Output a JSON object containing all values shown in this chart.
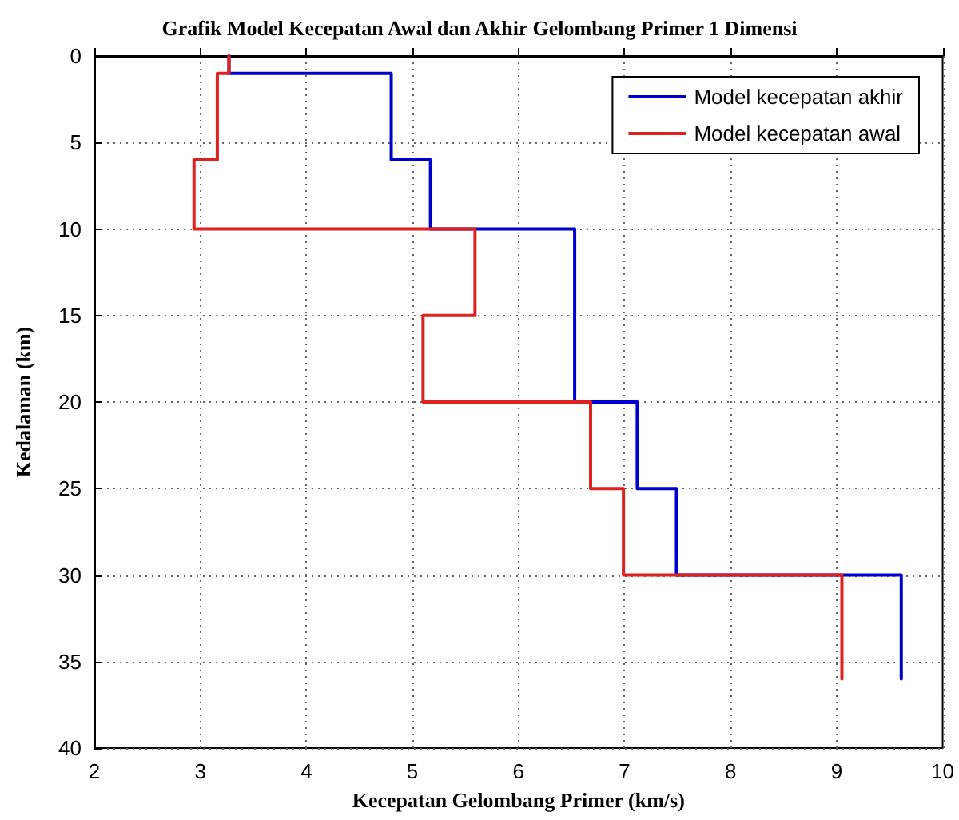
{
  "chart_data": {
    "type": "line",
    "title": "Grafik Model Kecepatan Awal dan Akhir Gelombang Primer 1 Dimensi",
    "xlabel": "Kecepatan Gelombang Primer (km/s)",
    "ylabel": "Kedalaman (km)",
    "series": [
      {
        "name": "Model kecepatan akhir",
        "color": "#0000cc",
        "x": [
          3.27,
          3.27,
          4.8,
          4.8,
          5.17,
          5.17,
          6.53,
          6.53,
          7.12,
          7.12,
          7.49,
          7.49,
          9.61,
          9.61
        ],
        "values": [
          0,
          1,
          1,
          6,
          6,
          10,
          10,
          20,
          20,
          25,
          25,
          30,
          30,
          36
        ]
      },
      {
        "name": "Model kecepatan awal",
        "color": "#dd2222",
        "x": [
          3.27,
          3.27,
          3.16,
          3.16,
          2.94,
          2.94,
          5.59,
          5.59,
          5.1,
          5.1,
          6.68,
          6.68,
          6.99,
          6.99,
          9.05,
          9.05
        ],
        "values": [
          0,
          1,
          1,
          6,
          6,
          10,
          10,
          15,
          15,
          20,
          20,
          25,
          25,
          30,
          30,
          36
        ]
      }
    ],
    "xlim": [
      2,
      10
    ],
    "xticks": [
      2,
      3,
      4,
      5,
      6,
      7,
      8,
      9,
      10
    ],
    "ylim": [
      40,
      0
    ],
    "yticks": [
      0,
      5,
      10,
      15,
      20,
      25,
      30,
      35,
      40
    ],
    "grid": true,
    "legend": "top right",
    "marker": "none",
    "line_style": "solid"
  }
}
